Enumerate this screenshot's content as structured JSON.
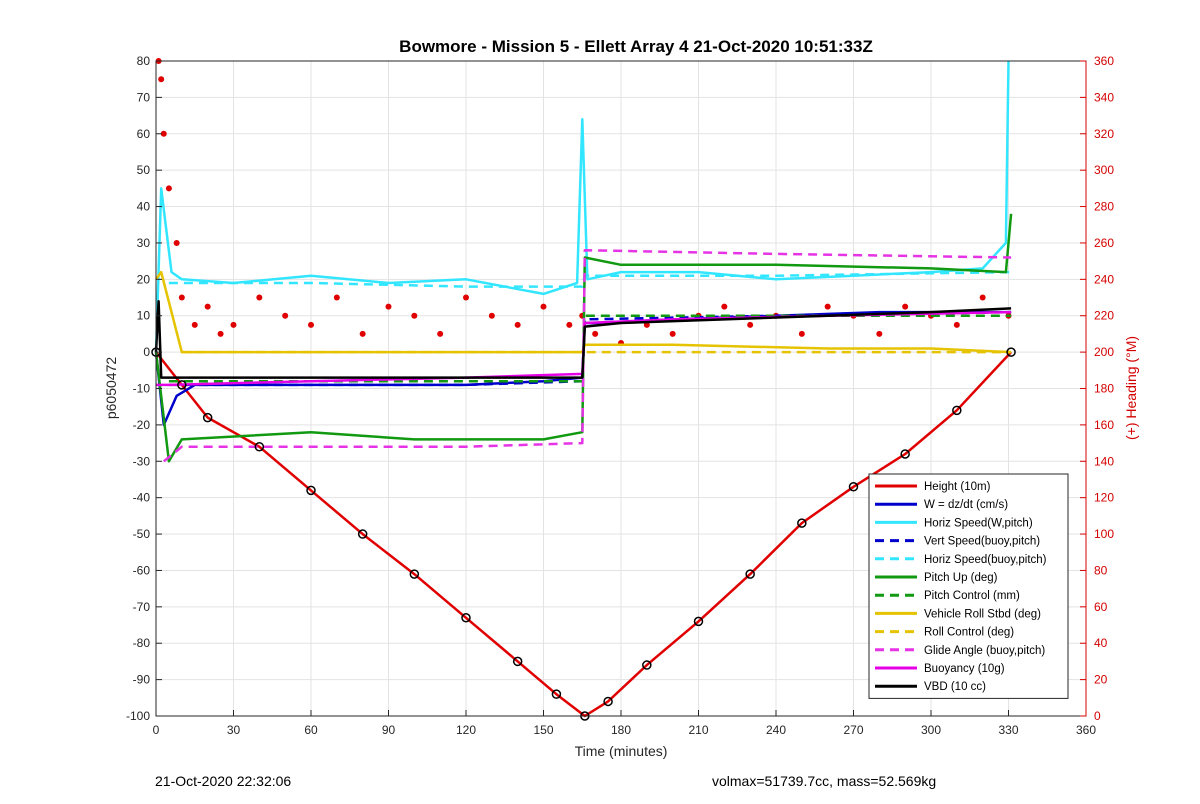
{
  "chart_data": {
    "type": "line",
    "title": "Bowmore - Mission 5 - Ellett Array 4 21-Oct-2020 10:51:33Z",
    "xlabel": "Time (minutes)",
    "ylabel": "p6050472",
    "ylabel_right": "(+) Heading (°M)",
    "xlim": [
      0,
      360
    ],
    "ylim": [
      -100,
      80
    ],
    "ylim_right": [
      0,
      360
    ],
    "x_ticks": [
      "0",
      "30",
      "60",
      "90",
      "120",
      "150",
      "180",
      "210",
      "240",
      "270",
      "300",
      "330",
      "360"
    ],
    "y_ticks": [
      "80",
      "70",
      "60",
      "50",
      "40",
      "30",
      "20",
      "10",
      "0",
      "-10",
      "-20",
      "-30",
      "-40",
      "-50",
      "-60",
      "-70",
      "-80",
      "-90",
      "-100"
    ],
    "y_right_ticks": [
      "360",
      "340",
      "320",
      "300",
      "280",
      "260",
      "240",
      "220",
      "200",
      "180",
      "160",
      "140",
      "120",
      "100",
      "80",
      "60",
      "40",
      "20",
      "0"
    ],
    "grid": true,
    "legend_position": "bottom-right",
    "series": [
      {
        "name": "Height (10m)",
        "color": "#e00000",
        "style": "solid",
        "x": [
          0,
          10,
          20,
          40,
          60,
          80,
          100,
          120,
          140,
          155,
          166,
          175,
          190,
          210,
          230,
          250,
          270,
          290,
          310,
          331
        ],
        "y": [
          0,
          -9,
          -18,
          -26,
          -38,
          -50,
          -61,
          -73,
          -85,
          -94,
          -100,
          -96,
          -86,
          -74,
          -61,
          -47,
          -37,
          -28,
          -16,
          0
        ]
      },
      {
        "name": "W = dz/dt (cm/s)",
        "color": "#0000cc",
        "style": "solid",
        "x": [
          0,
          3,
          8,
          15,
          30,
          60,
          90,
          120,
          150,
          165,
          166,
          170,
          200,
          240,
          280,
          320,
          331
        ],
        "y": [
          0,
          -20,
          -12,
          -9,
          -9,
          -9,
          -9,
          -9,
          -8,
          -7,
          8,
          8,
          9,
          10,
          11,
          11,
          11
        ]
      },
      {
        "name": "Horiz Speed(W,pitch)",
        "color": "#33e6ff",
        "style": "solid",
        "x": [
          0,
          2,
          6,
          10,
          30,
          60,
          90,
          120,
          150,
          163,
          165,
          167,
          180,
          210,
          240,
          270,
          300,
          320,
          329,
          330
        ],
        "y": [
          0,
          45,
          22,
          20,
          19,
          21,
          19,
          20,
          16,
          19,
          64,
          20,
          22,
          22,
          20,
          21,
          22,
          23,
          30,
          80
        ]
      },
      {
        "name": "Vert Speed(buoy,pitch)",
        "color": "#0000cc",
        "style": "dashed",
        "x": [
          5,
          60,
          120,
          165,
          166,
          240,
          331
        ],
        "y": [
          -9,
          -9,
          -9,
          -8,
          9,
          10,
          11
        ]
      },
      {
        "name": "Horiz Speed(buoy,pitch)",
        "color": "#33e6ff",
        "style": "dashed",
        "x": [
          5,
          60,
          120,
          165,
          166,
          240,
          331
        ],
        "y": [
          19,
          19,
          18,
          18,
          21,
          21,
          22
        ]
      },
      {
        "name": "Pitch Up (deg)",
        "color": "#119911",
        "style": "solid",
        "x": [
          0,
          5,
          10,
          60,
          100,
          150,
          165,
          166,
          180,
          240,
          300,
          329,
          331
        ],
        "y": [
          0,
          -30,
          -24,
          -22,
          -24,
          -24,
          -22,
          26,
          24,
          24,
          23,
          22,
          38
        ]
      },
      {
        "name": "Pitch Control (mm)",
        "color": "#119911",
        "style": "dashed",
        "x": [
          5,
          80,
          165,
          166,
          240,
          331
        ],
        "y": [
          -8,
          -8,
          -8,
          10,
          10,
          10
        ]
      },
      {
        "name": "Vehicle Roll Stbd (deg)",
        "color": "#e6c300",
        "style": "solid",
        "x": [
          0,
          2,
          10,
          60,
          120,
          165,
          166,
          200,
          260,
          300,
          331
        ],
        "y": [
          20,
          22,
          0,
          0,
          0,
          0,
          2,
          2,
          1,
          1,
          0
        ]
      },
      {
        "name": "Roll Control (deg)",
        "color": "#e6c300",
        "style": "dashed",
        "x": [
          10,
          60,
          120,
          165,
          166,
          240,
          331
        ],
        "y": [
          0,
          0,
          0,
          0,
          0,
          0,
          0
        ]
      },
      {
        "name": "Glide Angle (buoy,pitch)",
        "color": "#e633e6",
        "style": "dashed",
        "x": [
          3,
          10,
          60,
          120,
          165,
          166,
          240,
          331
        ],
        "y": [
          -30,
          -26,
          -26,
          -26,
          -25,
          28,
          27,
          26
        ]
      },
      {
        "name": "Buoyancy (10g)",
        "color": "#e600e6",
        "style": "solid",
        "x": [
          0,
          5,
          60,
          120,
          165,
          166,
          200,
          260,
          331
        ],
        "y": [
          -9,
          -9,
          -8,
          -7,
          -6,
          8,
          9,
          10,
          11
        ]
      },
      {
        "name": "VBD (10 cc)",
        "color": "#000000",
        "style": "solid",
        "x": [
          0,
          1,
          2,
          5,
          60,
          120,
          165,
          166,
          180,
          220,
          260,
          300,
          331
        ],
        "y": [
          0,
          14,
          -7,
          -7,
          -7,
          -7,
          -7,
          7,
          8,
          9,
          10,
          11,
          12
        ]
      }
    ],
    "heading_series": {
      "name": "Heading",
      "color": "#e00000",
      "style": "dots",
      "axis": "right",
      "x": [
        1,
        2,
        3,
        5,
        8,
        10,
        15,
        20,
        25,
        30,
        40,
        50,
        60,
        70,
        80,
        90,
        100,
        110,
        120,
        130,
        140,
        150,
        160,
        165,
        170,
        180,
        190,
        200,
        210,
        220,
        230,
        240,
        250,
        260,
        270,
        280,
        290,
        300,
        310,
        320,
        330
      ],
      "y": [
        360,
        350,
        320,
        290,
        260,
        230,
        215,
        225,
        210,
        215,
        230,
        220,
        215,
        230,
        210,
        225,
        220,
        210,
        230,
        220,
        215,
        225,
        215,
        220,
        210,
        205,
        215,
        210,
        220,
        225,
        215,
        220,
        210,
        225,
        220,
        210,
        225,
        220,
        215,
        230,
        220
      ]
    }
  },
  "footer": {
    "timestamp": "21-Oct-2020 22:32:06",
    "stats": "volmax=51739.7cc, mass=52.569kg"
  }
}
